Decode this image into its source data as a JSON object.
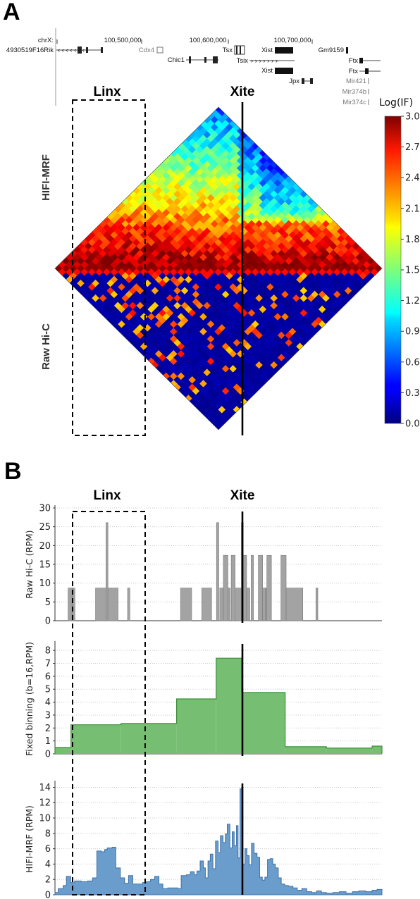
{
  "panels": {
    "a": "A",
    "b": "B"
  },
  "regions": {
    "linx": "Linx",
    "xite": "Xite"
  },
  "genome_browser": {
    "chrom": "chrX:",
    "coordinates": [
      "100,500,000",
      "100,600,000",
      "100,700,000"
    ],
    "genes": [
      "4930519F16Rik",
      "Cdx4",
      "Chic1",
      "Tsx",
      "Tsix",
      "Xist",
      "Xist",
      "Jpx",
      "Gm9159",
      "Ftx",
      "Ftx",
      "Mir421",
      "Mir374b",
      "Mir374c"
    ]
  },
  "colors": {
    "bar_fill": "#a3a3a3",
    "bar_stroke": "#7a7a7a",
    "fixed_fill": "#76bf72",
    "fixed_stroke": "#3e8f3a",
    "hifi_fill": "#6a9ccc",
    "hifi_stroke": "#3f73a8",
    "grid": "#c8c8c8"
  },
  "chart_data": [
    {
      "type": "heatmap",
      "title": "",
      "upper_triangle_label": "HIFI-MRF",
      "lower_triangle_label": "Raw Hi-C",
      "colorbar": {
        "title": "Log(IF)",
        "min": 0.0,
        "max": 3.0,
        "ticks": [
          "3.0",
          "2.7",
          "2.4",
          "2.1",
          "1.8",
          "1.5",
          "1.2",
          "0.9",
          "0.6",
          "0.3",
          "0.0"
        ],
        "colormap": "jet"
      }
    },
    {
      "type": "bar",
      "ylabel": "Raw Hi-C (RPM)",
      "ylim": [
        0,
        30
      ],
      "yticks": [
        "30",
        "25",
        "20",
        "15",
        "10",
        "5",
        "0"
      ],
      "x_domain": [
        0,
        100
      ],
      "bars": [
        {
          "x": 4.0,
          "w": 1.2,
          "v": 8.7
        },
        {
          "x": 5.3,
          "w": 0.8,
          "v": 8.7
        },
        {
          "x": 12.4,
          "w": 3.2,
          "v": 8.7
        },
        {
          "x": 15.6,
          "w": 0.6,
          "v": 26.1
        },
        {
          "x": 16.2,
          "w": 3.1,
          "v": 8.7
        },
        {
          "x": 22.2,
          "w": 0.7,
          "v": 8.7
        },
        {
          "x": 38.4,
          "w": 3.4,
          "v": 8.7
        },
        {
          "x": 44.9,
          "w": 3.0,
          "v": 8.7
        },
        {
          "x": 49.4,
          "w": 0.7,
          "v": 26.1
        },
        {
          "x": 50.4,
          "w": 1.1,
          "v": 8.7
        },
        {
          "x": 51.5,
          "w": 1.4,
          "v": 17.4
        },
        {
          "x": 52.9,
          "w": 0.7,
          "v": 8.7
        },
        {
          "x": 53.9,
          "w": 1.2,
          "v": 17.4
        },
        {
          "x": 55.3,
          "w": 1.7,
          "v": 8.7
        },
        {
          "x": 57.0,
          "w": 0.6,
          "v": 26.1
        },
        {
          "x": 57.6,
          "w": 1.0,
          "v": 17.4
        },
        {
          "x": 58.6,
          "w": 1.0,
          "v": 8.7
        },
        {
          "x": 60.0,
          "w": 0.7,
          "v": 17.4
        },
        {
          "x": 62.2,
          "w": 1.3,
          "v": 17.4
        },
        {
          "x": 63.5,
          "w": 0.8,
          "v": 8.7
        },
        {
          "x": 64.3,
          "w": 0.5,
          "v": 8.7
        },
        {
          "x": 64.8,
          "w": 1.4,
          "v": 17.4
        },
        {
          "x": 69.1,
          "w": 1.6,
          "v": 17.4
        },
        {
          "x": 70.7,
          "w": 5.1,
          "v": 8.7
        },
        {
          "x": 79.8,
          "w": 0.6,
          "v": 8.7
        }
      ]
    },
    {
      "type": "area",
      "ylabel": "Fixed binning (b=16,RPM)",
      "ylim": [
        0,
        8.5
      ],
      "yticks": [
        "8",
        "7",
        "6",
        "5",
        "4",
        "3",
        "2",
        "1",
        "0"
      ],
      "x_domain": [
        0,
        100
      ],
      "steps": [
        {
          "x0": 0,
          "x1": 4.9,
          "v": 0.5
        },
        {
          "x0": 4.9,
          "x1": 20.2,
          "v": 2.25
        },
        {
          "x0": 20.2,
          "x1": 37.2,
          "v": 2.35
        },
        {
          "x0": 37.2,
          "x1": 49.3,
          "v": 4.25
        },
        {
          "x0": 49.3,
          "x1": 57.1,
          "v": 7.4
        },
        {
          "x0": 57.1,
          "x1": 70.4,
          "v": 4.75
        },
        {
          "x0": 70.4,
          "x1": 83.0,
          "v": 0.55
        },
        {
          "x0": 83.0,
          "x1": 97.0,
          "v": 0.45
        },
        {
          "x0": 97.0,
          "x1": 100,
          "v": 0.6
        }
      ]
    },
    {
      "type": "area",
      "ylabel": "HIFI-MRF (RPM)",
      "ylim": [
        0,
        14.5
      ],
      "yticks": [
        "14",
        "12",
        "10",
        "8",
        "6",
        "4",
        "2",
        "0"
      ],
      "x_domain": [
        0,
        100
      ],
      "points": [
        [
          0,
          0.3
        ],
        [
          1.0,
          0.8
        ],
        [
          2.5,
          1.2
        ],
        [
          3.5,
          2.4
        ],
        [
          4.8,
          1.6
        ],
        [
          6.0,
          1.8
        ],
        [
          8.0,
          1.7
        ],
        [
          10.0,
          1.8
        ],
        [
          11.5,
          2.2
        ],
        [
          12.8,
          5.7
        ],
        [
          14.2,
          5.6
        ],
        [
          15.2,
          5.9
        ],
        [
          16.0,
          6.1
        ],
        [
          17.5,
          6.2
        ],
        [
          18.6,
          3.5
        ],
        [
          20.0,
          2.2
        ],
        [
          21.3,
          1.5
        ],
        [
          22.5,
          2.5
        ],
        [
          23.8,
          1.4
        ],
        [
          25.4,
          1.4
        ],
        [
          26.8,
          1.6
        ],
        [
          28.0,
          1.7
        ],
        [
          29.2,
          2.0
        ],
        [
          30.5,
          2.4
        ],
        [
          31.8,
          1.4
        ],
        [
          33.0,
          0.8
        ],
        [
          34.5,
          0.9
        ],
        [
          36.0,
          0.9
        ],
        [
          37.6,
          0.8
        ],
        [
          38.6,
          2.5
        ],
        [
          40.2,
          2.6
        ],
        [
          41.4,
          3.0
        ],
        [
          42.6,
          2.6
        ],
        [
          43.4,
          3.1
        ],
        [
          44.4,
          4.4
        ],
        [
          45.4,
          3.5
        ],
        [
          46.0,
          2.2
        ],
        [
          46.8,
          4.4
        ],
        [
          47.5,
          5.3
        ],
        [
          48.3,
          3.4
        ],
        [
          49.1,
          7.0
        ],
        [
          49.9,
          5.5
        ],
        [
          50.6,
          7.7
        ],
        [
          51.4,
          6.8
        ],
        [
          52.1,
          7.9
        ],
        [
          52.7,
          9.2
        ],
        [
          53.5,
          6.1
        ],
        [
          54.2,
          8.2
        ],
        [
          54.8,
          6.4
        ],
        [
          55.5,
          9.0
        ],
        [
          56.0,
          4.8
        ],
        [
          56.6,
          13.8
        ],
        [
          57.1,
          14.0
        ],
        [
          57.5,
          4.0
        ],
        [
          58.1,
          6.0
        ],
        [
          58.7,
          5.1
        ],
        [
          59.4,
          3.9
        ],
        [
          60.1,
          6.7
        ],
        [
          60.9,
          5.4
        ],
        [
          61.8,
          4.9
        ],
        [
          62.6,
          2.3
        ],
        [
          63.4,
          1.9
        ],
        [
          64.2,
          2.3
        ],
        [
          65.0,
          4.6
        ],
        [
          65.8,
          4.7
        ],
        [
          66.6,
          4.0
        ],
        [
          67.4,
          3.5
        ],
        [
          68.3,
          2.2
        ],
        [
          69.2,
          1.4
        ],
        [
          70.3,
          1.2
        ],
        [
          71.4,
          1.1
        ],
        [
          72.8,
          0.9
        ],
        [
          74.1,
          0.6
        ],
        [
          75.5,
          0.8
        ],
        [
          77.0,
          0.4
        ],
        [
          78.5,
          0.3
        ],
        [
          80.0,
          0.5
        ],
        [
          81.5,
          0.3
        ],
        [
          83.0,
          0.2
        ],
        [
          85.0,
          0.3
        ],
        [
          87.0,
          0.4
        ],
        [
          89.0,
          0.2
        ],
        [
          91.0,
          0.4
        ],
        [
          93.0,
          0.5
        ],
        [
          95.0,
          0.4
        ],
        [
          97.0,
          0.6
        ],
        [
          98.5,
          0.7
        ],
        [
          100,
          0.6
        ]
      ]
    }
  ]
}
